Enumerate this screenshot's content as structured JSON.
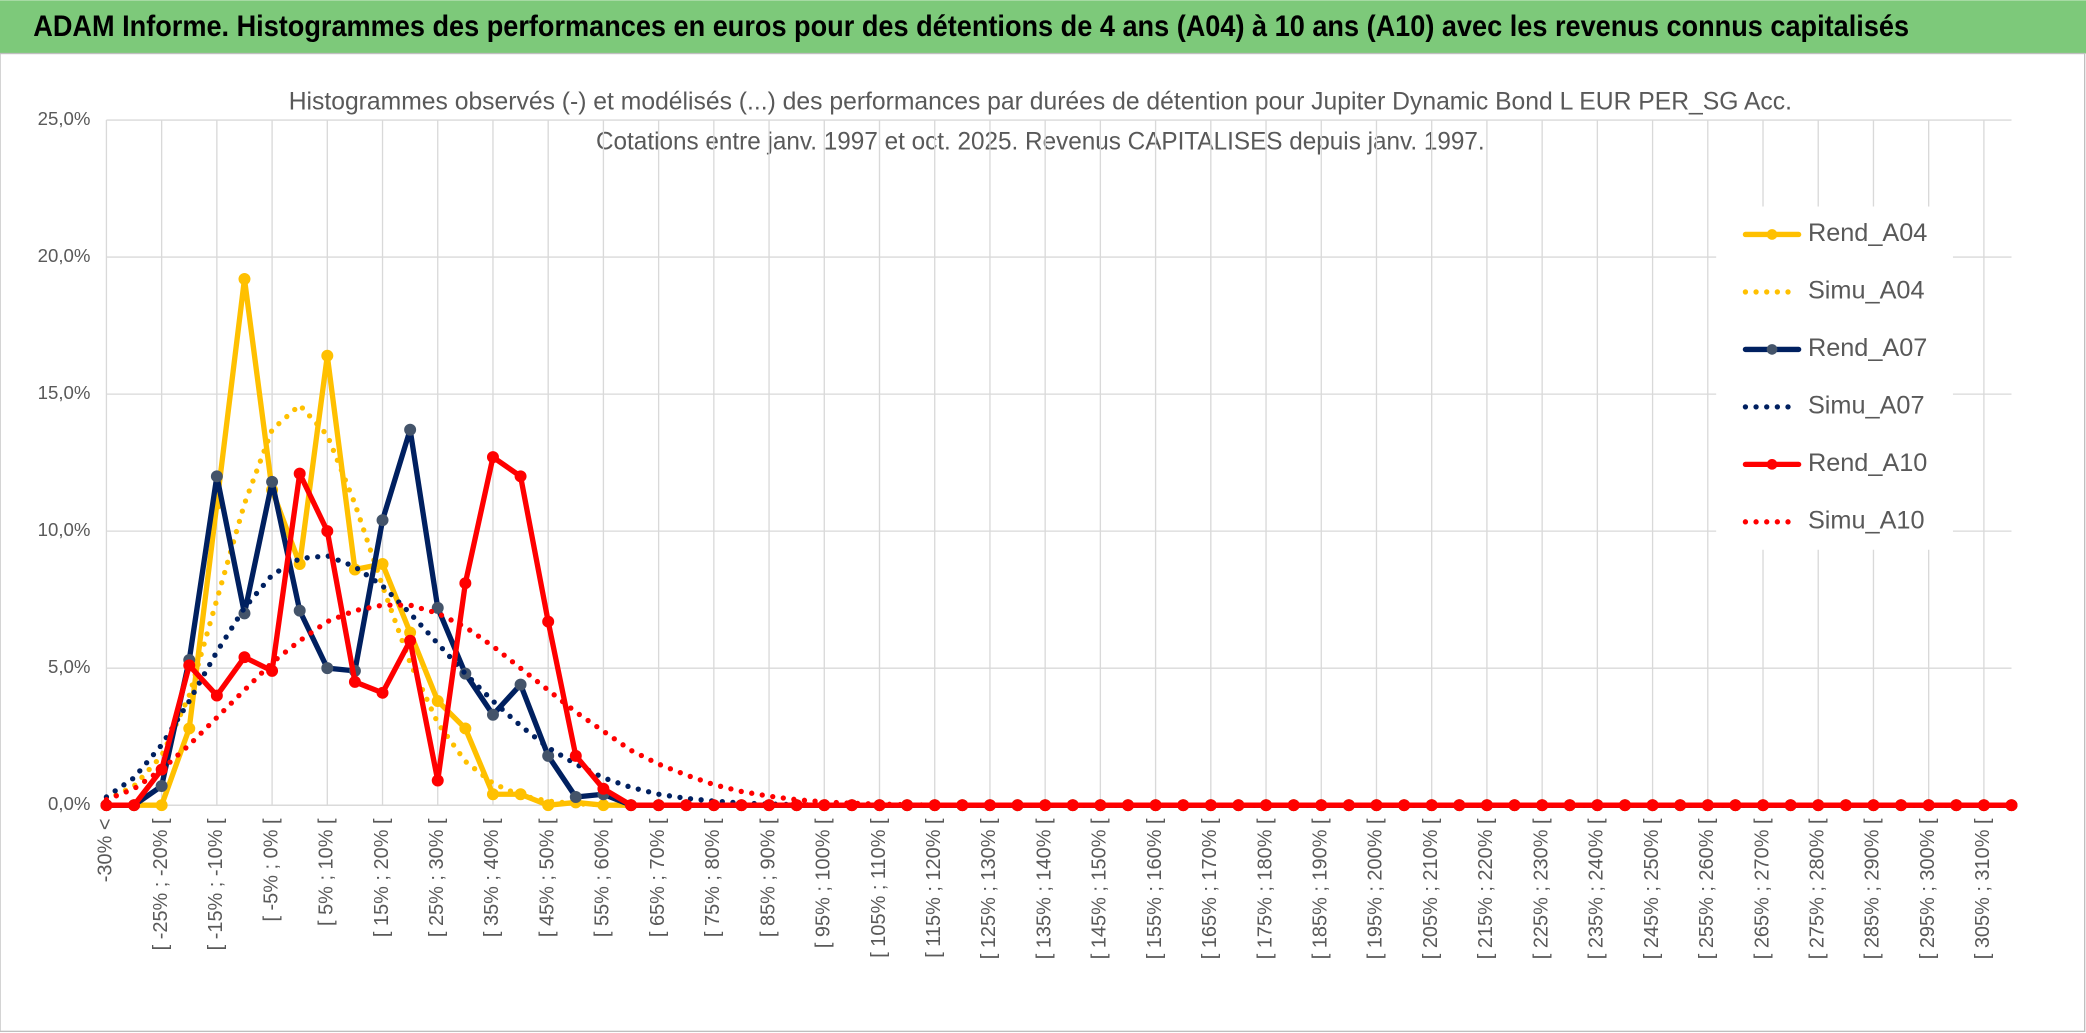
{
  "header": {
    "title": "ADAM Informe. Histogrammes des performances en euros pour des détentions de 4 ans (A04) à 10 ans (A10) avec les revenus connus capitalisés"
  },
  "chart_data": {
    "type": "line",
    "title": "Histogrammes observés (-) et modélisés (...) des performances par durées de détention pour Jupiter Dynamic Bond L EUR PER_SG Acc.",
    "subtitle": "Cotations entre janv. 1997 et oct. 2025. Revenus CAPITALISES depuis janv. 1997.",
    "categories": [
      "-30% <",
      null,
      "[ -25% ; -20% [",
      null,
      "[ -15% ; -10% [",
      null,
      "[ -5% ; 0% [",
      null,
      "[ 5% ; 10% [",
      null,
      "[ 15% ; 20% [",
      null,
      "[ 25% ; 30% [",
      null,
      "[ 35% ; 40% [",
      null,
      "[ 45% ; 50% [",
      null,
      "[ 55% ; 60% [",
      null,
      "[ 65% ; 70% [",
      null,
      "[ 75% ; 80% [",
      null,
      "[ 85% ; 90% [",
      null,
      "[ 95% ; 100% [",
      null,
      "[ 105% ; 110% [",
      null,
      "[ 115% ; 120% [",
      null,
      "[ 125% ; 130% [",
      null,
      "[ 135% ; 140% [",
      null,
      "[ 145% ; 150% [",
      null,
      "[ 155% ; 160% [",
      null,
      "[ 165% ; 170% [",
      null,
      "[ 175% ; 180% [",
      null,
      "[ 185% ; 190% [",
      null,
      "[ 195% ; 200% [",
      null,
      "[ 205% ; 210% [",
      null,
      "[ 215% ; 220% [",
      null,
      "[ 225% ; 230% [",
      null,
      "[ 235% ; 240% [",
      null,
      "[ 245% ; 250% [",
      null,
      "[ 255% ; 260% [",
      null,
      "[ 265% ; 270% [",
      null,
      "[ 275% ; 280% [",
      null,
      "[ 285% ; 290% [",
      null,
      "[ 295% ; 300% [",
      null,
      "[ 305% ; 310% [",
      null
    ],
    "series": [
      {
        "name": "Rend_A04",
        "color": "#ffc000",
        "line_style": "solid",
        "markers": true,
        "values": [
          0,
          0,
          0,
          2.8,
          11,
          19.2,
          11.5,
          8.8,
          16.4,
          8.6,
          8.8,
          6.3,
          3.8,
          2.8,
          0.4,
          0.4,
          0,
          0.1,
          0,
          0,
          0,
          0,
          0,
          0,
          0,
          0,
          0,
          0,
          0,
          0,
          0,
          0,
          0,
          0,
          0,
          0,
          0,
          0,
          0,
          0,
          0,
          0,
          0,
          0,
          0,
          0,
          0,
          0,
          0,
          0,
          0,
          0,
          0,
          0,
          0,
          0,
          0,
          0,
          0,
          0,
          0,
          0,
          0,
          0,
          0,
          0,
          0,
          0,
          0,
          0
        ]
      },
      {
        "name": "Simu_A04",
        "color": "#ffc000",
        "line_style": "dotted",
        "markers": false,
        "values": [
          0.2,
          0.7,
          1.8,
          4.0,
          7.5,
          11.0,
          13.7,
          14.6,
          13.5,
          11.0,
          8.0,
          5.2,
          3.0,
          1.6,
          0.8,
          0.35,
          0.15,
          0.05,
          0.02,
          0,
          0,
          0,
          0,
          0,
          0,
          0,
          0,
          0,
          0,
          0,
          0,
          0,
          0,
          0,
          0,
          0,
          0,
          0,
          0,
          0,
          0,
          0,
          0,
          0,
          0,
          0,
          0,
          0,
          0,
          0,
          0,
          0,
          0,
          0,
          0,
          0,
          0,
          0,
          0,
          0,
          0,
          0,
          0,
          0,
          0,
          0,
          0,
          0,
          0,
          0
        ]
      },
      {
        "name": "Rend_A07",
        "color": "#002060",
        "marker_color": "#44546a",
        "line_style": "solid",
        "markers": true,
        "values": [
          0,
          0,
          0.7,
          5.3,
          12.0,
          7.0,
          11.8,
          7.1,
          5.0,
          4.9,
          10.4,
          13.7,
          7.2,
          4.8,
          3.3,
          4.4,
          1.8,
          0.3,
          0.4,
          0,
          0,
          0,
          0,
          0,
          0,
          0,
          0,
          0,
          0,
          0,
          0,
          0,
          0,
          0,
          0,
          0,
          0,
          0,
          0,
          0,
          0,
          0,
          0,
          0,
          0,
          0,
          0,
          0,
          0,
          0,
          0,
          0,
          0,
          0,
          0,
          0,
          0,
          0,
          0,
          0,
          0,
          0,
          0,
          0,
          0,
          0,
          0,
          0,
          0,
          0
        ]
      },
      {
        "name": "Simu_A07",
        "color": "#002060",
        "line_style": "dotted",
        "markers": false,
        "values": [
          0.3,
          1.0,
          2.2,
          3.8,
          5.6,
          7.2,
          8.4,
          9.0,
          9.1,
          8.7,
          8.0,
          7.0,
          5.9,
          4.8,
          3.8,
          2.9,
          2.1,
          1.5,
          1.0,
          0.65,
          0.4,
          0.25,
          0.15,
          0.08,
          0.04,
          0.02,
          0,
          0,
          0,
          0,
          0,
          0,
          0,
          0,
          0,
          0,
          0,
          0,
          0,
          0,
          0,
          0,
          0,
          0,
          0,
          0,
          0,
          0,
          0,
          0,
          0,
          0,
          0,
          0,
          0,
          0,
          0,
          0,
          0,
          0,
          0,
          0,
          0,
          0,
          0,
          0,
          0,
          0,
          0,
          0
        ]
      },
      {
        "name": "Rend_A10",
        "color": "#ff0000",
        "line_style": "solid",
        "markers": true,
        "values": [
          0,
          0,
          1.3,
          5.1,
          4.0,
          5.4,
          4.9,
          12.1,
          10.0,
          4.5,
          4.1,
          6.0,
          0.9,
          8.1,
          12.7,
          12.0,
          6.7,
          1.8,
          0.6,
          0,
          0,
          0,
          0,
          0,
          0,
          0,
          0,
          0,
          0,
          0,
          0,
          0,
          0,
          0,
          0,
          0,
          0,
          0,
          0,
          0,
          0,
          0,
          0,
          0,
          0,
          0,
          0,
          0,
          0,
          0,
          0,
          0,
          0,
          0,
          0,
          0,
          0,
          0,
          0,
          0,
          0,
          0,
          0,
          0,
          0,
          0,
          0,
          0,
          0,
          0
        ]
      },
      {
        "name": "Simu_A10",
        "color": "#ff0000",
        "line_style": "dotted",
        "markers": false,
        "values": [
          0.2,
          0.6,
          1.3,
          2.2,
          3.2,
          4.2,
          5.2,
          6.0,
          6.7,
          7.1,
          7.3,
          7.3,
          7.0,
          6.5,
          5.8,
          5.0,
          4.2,
          3.4,
          2.7,
          2.0,
          1.5,
          1.1,
          0.75,
          0.5,
          0.33,
          0.2,
          0.12,
          0.07,
          0.04,
          0.02,
          0,
          0,
          0,
          0,
          0,
          0,
          0,
          0,
          0,
          0,
          0,
          0,
          0,
          0,
          0,
          0,
          0,
          0,
          0,
          0,
          0,
          0,
          0,
          0,
          0,
          0,
          0,
          0,
          0,
          0,
          0,
          0,
          0,
          0,
          0,
          0,
          0,
          0,
          0,
          0
        ]
      }
    ],
    "ylim": [
      0,
      25
    ],
    "yticks": [
      {
        "value": 0,
        "label": "0,0%"
      },
      {
        "value": 5,
        "label": "5,0%"
      },
      {
        "value": 10,
        "label": "10,0%"
      },
      {
        "value": 15,
        "label": "15,0%"
      },
      {
        "value": 20,
        "label": "20,0%"
      },
      {
        "value": 25,
        "label": "25,0%"
      }
    ],
    "grid": true,
    "legend": "right"
  }
}
